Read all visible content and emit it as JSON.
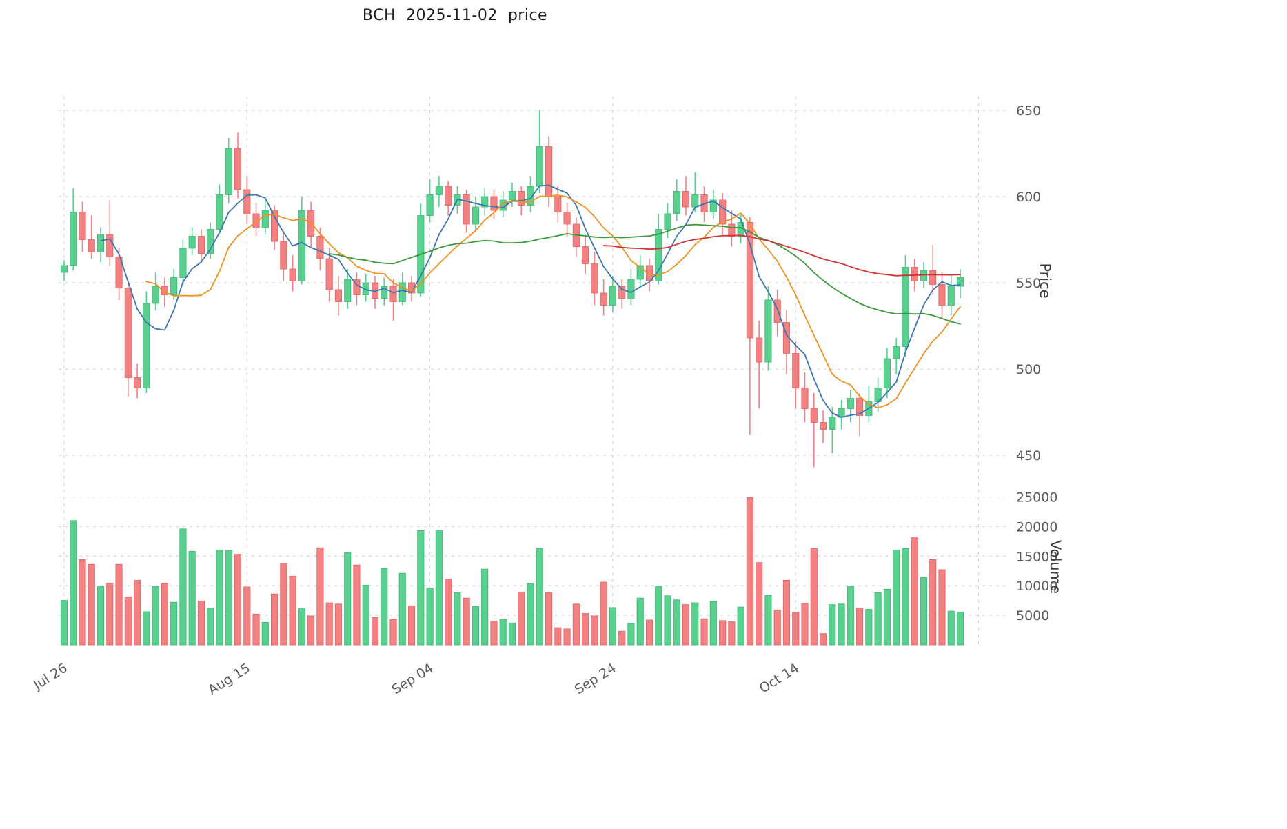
{
  "title": "BCH  2025-11-02  price",
  "chart_data": {
    "type": "candlestick",
    "title": "BCH  2025-11-02  price",
    "panels": [
      "price",
      "volume"
    ],
    "grid": true,
    "grid_color": "#cfcfcf",
    "tick_text_color": "#595959",
    "up_color": "#58d08e",
    "down_color": "#f38181",
    "up_edge_color": "#3fb374",
    "down_edge_color": "#e06262",
    "x_ticks": [
      {
        "index": 0,
        "label": "Jul 26"
      },
      {
        "index": 20,
        "label": "Aug 15"
      },
      {
        "index": 40,
        "label": "Sep 04"
      },
      {
        "index": 60,
        "label": "Sep 24"
      },
      {
        "index": 80,
        "label": "Oct 14"
      },
      {
        "index": 100,
        "label": ""
      }
    ],
    "price_axis": {
      "label": "Price",
      "ticks": [
        650,
        600,
        550,
        500,
        450
      ],
      "range": [
        438,
        658
      ]
    },
    "volume_axis": {
      "label": "Volume",
      "ticks": [
        25000,
        20000,
        15000,
        10000,
        5000
      ],
      "range": [
        0,
        26800
      ]
    },
    "moving_averages": [
      {
        "name": "MA5",
        "period": 5,
        "color": "#3a76b4"
      },
      {
        "name": "MA10",
        "period": 10,
        "color": "#ef9120"
      },
      {
        "name": "MA30",
        "period": 30,
        "color": "#3a9a3a"
      },
      {
        "name": "MA60",
        "period": 60,
        "color": "#cf3333"
      }
    ],
    "ohlc": [
      [
        556,
        563,
        551,
        560
      ],
      [
        560,
        605,
        557,
        591
      ],
      [
        591,
        597,
        568,
        575
      ],
      [
        575,
        589,
        564,
        568
      ],
      [
        568,
        582,
        562,
        578
      ],
      [
        578,
        598,
        560,
        565
      ],
      [
        565,
        570,
        540,
        547
      ],
      [
        547,
        550,
        484,
        495
      ],
      [
        495,
        503,
        483,
        489
      ],
      [
        489,
        545,
        486,
        538
      ],
      [
        538,
        556,
        534,
        548
      ],
      [
        548,
        553,
        536,
        543
      ],
      [
        543,
        558,
        540,
        553
      ],
      [
        553,
        575,
        549,
        570
      ],
      [
        570,
        582,
        566,
        577
      ],
      [
        577,
        581,
        562,
        567
      ],
      [
        567,
        585,
        564,
        581
      ],
      [
        581,
        607,
        578,
        601
      ],
      [
        601,
        634,
        596,
        628
      ],
      [
        628,
        637,
        599,
        604
      ],
      [
        604,
        612,
        584,
        590
      ],
      [
        590,
        596,
        577,
        582
      ],
      [
        582,
        598,
        578,
        592
      ],
      [
        592,
        595,
        569,
        574
      ],
      [
        574,
        580,
        551,
        558
      ],
      [
        558,
        566,
        545,
        551
      ],
      [
        551,
        600,
        549,
        592
      ],
      [
        592,
        597,
        571,
        577
      ],
      [
        577,
        582,
        557,
        564
      ],
      [
        564,
        570,
        539,
        546
      ],
      [
        546,
        554,
        531,
        539
      ],
      [
        539,
        558,
        535,
        552
      ],
      [
        552,
        556,
        537,
        543
      ],
      [
        543,
        555,
        539,
        550
      ],
      [
        550,
        554,
        535,
        541
      ],
      [
        541,
        553,
        537,
        548
      ],
      [
        548,
        552,
        528,
        539
      ],
      [
        539,
        556,
        537,
        550
      ],
      [
        550,
        554,
        539,
        544
      ],
      [
        544,
        596,
        542,
        589
      ],
      [
        589,
        610,
        585,
        601
      ],
      [
        601,
        612,
        594,
        606
      ],
      [
        606,
        609,
        589,
        595
      ],
      [
        595,
        606,
        590,
        601
      ],
      [
        601,
        604,
        579,
        584
      ],
      [
        584,
        600,
        580,
        594
      ],
      [
        594,
        605,
        589,
        600
      ],
      [
        600,
        604,
        587,
        592
      ],
      [
        592,
        603,
        588,
        598
      ],
      [
        598,
        608,
        594,
        603
      ],
      [
        603,
        606,
        589,
        595
      ],
      [
        595,
        612,
        591,
        606
      ],
      [
        606,
        650,
        602,
        629
      ],
      [
        629,
        635,
        594,
        600
      ],
      [
        600,
        606,
        585,
        591
      ],
      [
        591,
        596,
        577,
        584
      ],
      [
        584,
        588,
        565,
        571
      ],
      [
        571,
        578,
        555,
        561
      ],
      [
        561,
        568,
        537,
        544
      ],
      [
        544,
        552,
        531,
        537
      ],
      [
        537,
        554,
        533,
        548
      ],
      [
        548,
        552,
        535,
        541
      ],
      [
        541,
        558,
        537,
        552
      ],
      [
        552,
        566,
        547,
        560
      ],
      [
        560,
        564,
        545,
        551
      ],
      [
        551,
        590,
        549,
        581
      ],
      [
        581,
        596,
        576,
        590
      ],
      [
        590,
        610,
        586,
        603
      ],
      [
        603,
        612,
        589,
        594
      ],
      [
        594,
        614,
        591,
        601
      ],
      [
        601,
        606,
        585,
        591
      ],
      [
        591,
        604,
        587,
        598
      ],
      [
        598,
        602,
        577,
        584
      ],
      [
        584,
        592,
        571,
        577
      ],
      [
        577,
        590,
        573,
        585
      ],
      [
        585,
        588,
        462,
        518
      ],
      [
        518,
        528,
        477,
        504
      ],
      [
        504,
        548,
        499,
        540
      ],
      [
        540,
        546,
        519,
        527
      ],
      [
        527,
        534,
        497,
        509
      ],
      [
        509,
        516,
        477,
        489
      ],
      [
        489,
        498,
        469,
        477
      ],
      [
        477,
        486,
        443,
        469
      ],
      [
        469,
        476,
        457,
        465
      ],
      [
        465,
        478,
        451,
        472
      ],
      [
        472,
        482,
        465,
        477
      ],
      [
        477,
        488,
        469,
        483
      ],
      [
        483,
        486,
        461,
        473
      ],
      [
        473,
        490,
        469,
        481
      ],
      [
        481,
        495,
        475,
        489
      ],
      [
        489,
        512,
        483,
        506
      ],
      [
        506,
        518,
        497,
        513
      ],
      [
        513,
        566,
        507,
        559
      ],
      [
        559,
        564,
        545,
        551
      ],
      [
        551,
        562,
        547,
        557
      ],
      [
        557,
        572,
        543,
        549
      ],
      [
        549,
        556,
        529,
        537
      ],
      [
        537,
        554,
        531,
        548
      ],
      [
        548,
        558,
        541,
        553
      ]
    ],
    "volume": [
      7500,
      21000,
      14400,
      13600,
      9900,
      10400,
      13600,
      8100,
      10900,
      5600,
      9900,
      10400,
      7200,
      19600,
      15800,
      7400,
      6200,
      16000,
      15900,
      15300,
      9800,
      5200,
      3800,
      8600,
      13800,
      11600,
      6100,
      4900,
      16400,
      7100,
      6900,
      15600,
      13500,
      10100,
      4600,
      12900,
      4300,
      12100,
      6600,
      19300,
      9600,
      19400,
      11100,
      8800,
      7900,
      6500,
      12800,
      4000,
      4300,
      3700,
      8900,
      10400,
      16300,
      8800,
      2900,
      2700,
      6900,
      5300,
      4900,
      10600,
      6300,
      2300,
      3600,
      7900,
      4200,
      9900,
      8300,
      7600,
      6800,
      7100,
      4400,
      7300,
      4100,
      3900,
      6400,
      24900,
      13900,
      8400,
      5900,
      10900,
      5500,
      7000,
      16300,
      1900,
      6800,
      6900,
      9900,
      6200,
      6000,
      8800,
      9400,
      16000,
      16300,
      18100,
      11400,
      14400,
      12700,
      5700,
      5500
    ]
  }
}
